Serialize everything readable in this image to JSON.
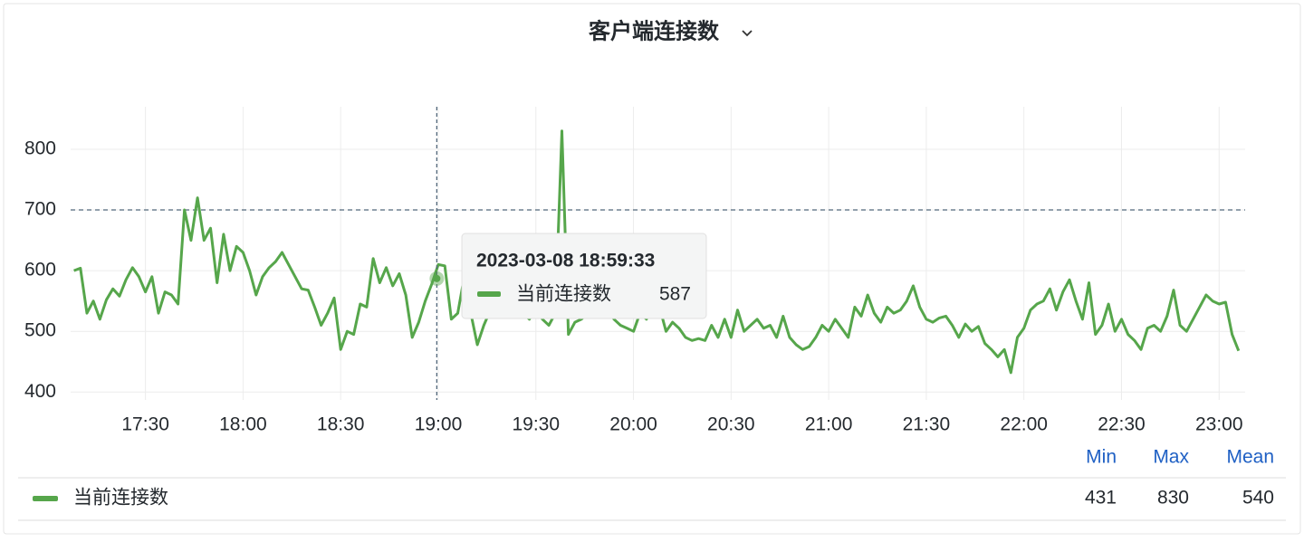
{
  "chart_data": {
    "type": "line",
    "title": "客户端连接数",
    "x": [
      "17:08",
      "17:10",
      "17:12",
      "17:14",
      "17:16",
      "17:18",
      "17:20",
      "17:22",
      "17:24",
      "17:26",
      "17:28",
      "17:30",
      "17:32",
      "17:34",
      "17:36",
      "17:38",
      "17:40",
      "17:42",
      "17:44",
      "17:46",
      "17:48",
      "17:50",
      "17:52",
      "17:54",
      "17:56",
      "17:58",
      "18:00",
      "18:02",
      "18:04",
      "18:06",
      "18:08",
      "18:10",
      "18:12",
      "18:14",
      "18:16",
      "18:18",
      "18:20",
      "18:22",
      "18:24",
      "18:26",
      "18:28",
      "18:30",
      "18:32",
      "18:34",
      "18:36",
      "18:38",
      "18:40",
      "18:42",
      "18:44",
      "18:46",
      "18:48",
      "18:50",
      "18:52",
      "18:54",
      "18:56",
      "18:58",
      "19:00",
      "19:02",
      "19:04",
      "19:06",
      "19:08",
      "19:10",
      "19:12",
      "19:14",
      "19:16",
      "19:18",
      "19:20",
      "19:22",
      "19:24",
      "19:26",
      "19:28",
      "19:30",
      "19:32",
      "19:34",
      "19:36",
      "19:38",
      "19:40",
      "19:42",
      "19:44",
      "19:46",
      "19:48",
      "19:50",
      "19:52",
      "19:54",
      "19:56",
      "19:58",
      "20:00",
      "20:02",
      "20:04",
      "20:06",
      "20:08",
      "20:10",
      "20:12",
      "20:14",
      "20:16",
      "20:18",
      "20:20",
      "20:22",
      "20:24",
      "20:26",
      "20:28",
      "20:30",
      "20:32",
      "20:34",
      "20:36",
      "20:38",
      "20:40",
      "20:42",
      "20:44",
      "20:46",
      "20:48",
      "20:50",
      "20:52",
      "20:54",
      "20:56",
      "20:58",
      "21:00",
      "21:02",
      "21:04",
      "21:06",
      "21:08",
      "21:10",
      "21:12",
      "21:14",
      "21:16",
      "21:18",
      "21:20",
      "21:22",
      "21:24",
      "21:26",
      "21:28",
      "21:30",
      "21:32",
      "21:34",
      "21:36",
      "21:38",
      "21:40",
      "21:42",
      "21:44",
      "21:46",
      "21:48",
      "21:50",
      "21:52",
      "21:54",
      "21:56",
      "21:58",
      "22:00",
      "22:02",
      "22:04",
      "22:06",
      "22:08",
      "22:10",
      "22:12",
      "22:14",
      "22:16",
      "22:18",
      "22:20",
      "22:22",
      "22:24",
      "22:26",
      "22:28",
      "22:30",
      "22:32",
      "22:34",
      "22:36",
      "22:38",
      "22:40",
      "22:42",
      "22:44",
      "22:46",
      "22:48",
      "22:50",
      "22:52",
      "22:54",
      "22:56",
      "22:58",
      "23:00",
      "23:02",
      "23:04",
      "23:06"
    ],
    "series": [
      {
        "name": "当前连接数",
        "color": "#56a64b",
        "values": [
          600,
          604,
          530,
          550,
          520,
          552,
          570,
          558,
          585,
          605,
          590,
          565,
          590,
          530,
          565,
          560,
          545,
          700,
          650,
          720,
          650,
          670,
          580,
          660,
          600,
          640,
          630,
          600,
          560,
          590,
          605,
          615,
          630,
          610,
          590,
          570,
          568,
          540,
          510,
          530,
          555,
          470,
          500,
          495,
          545,
          540,
          620,
          580,
          605,
          575,
          595,
          560,
          490,
          515,
          550,
          578,
          610,
          608,
          520,
          530,
          590,
          530,
          478,
          510,
          535,
          550,
          600,
          560,
          540,
          530,
          520,
          540,
          520,
          510,
          530,
          830,
          495,
          515,
          520,
          530,
          550,
          560,
          540,
          520,
          510,
          505,
          500,
          530,
          520,
          560,
          540,
          500,
          515,
          505,
          490,
          485,
          488,
          485,
          510,
          490,
          520,
          490,
          535,
          500,
          510,
          520,
          505,
          510,
          490,
          525,
          490,
          478,
          470,
          475,
          490,
          510,
          500,
          520,
          505,
          490,
          540,
          525,
          560,
          530,
          515,
          540,
          530,
          535,
          550,
          575,
          540,
          520,
          515,
          522,
          525,
          510,
          490,
          512,
          500,
          508,
          480,
          470,
          458,
          470,
          432,
          490,
          505,
          535,
          545,
          550,
          570,
          535,
          565,
          585,
          550,
          520,
          580,
          495,
          510,
          545,
          500,
          520,
          495,
          485,
          470,
          505,
          510,
          500,
          525,
          568,
          510,
          500,
          520,
          540,
          560,
          550,
          545,
          548,
          495,
          468
        ]
      }
    ],
    "xlim": [
      "17:07",
      "23:08"
    ],
    "xticks": [
      "17:30",
      "18:00",
      "18:30",
      "19:00",
      "19:30",
      "20:00",
      "20:30",
      "21:00",
      "21:30",
      "22:00",
      "22:30",
      "23:00"
    ],
    "ylim": [
      387,
      870
    ],
    "yticks": [
      400,
      500,
      600,
      700,
      800
    ],
    "grid": true,
    "threshold": 700,
    "tooltip": {
      "time": "2023-03-08 18:59:33",
      "value": 587
    },
    "legend_stats": {
      "headers": [
        "Min",
        "Max",
        "Mean"
      ],
      "values": [
        431,
        830,
        540
      ]
    }
  }
}
